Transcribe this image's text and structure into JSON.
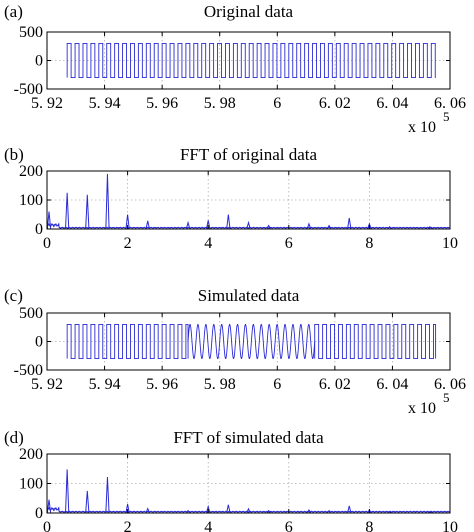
{
  "chart_data": [
    {
      "id": "a",
      "panel_label": "(a)",
      "type": "line",
      "title": "Original data",
      "xlim": [
        592000,
        606000
      ],
      "ylim": [
        -500,
        500
      ],
      "xticks": [
        592000,
        594000,
        596000,
        598000,
        600000,
        602000,
        604000,
        606000
      ],
      "xtick_labels": [
        "5. 92",
        "5. 94",
        "5. 96",
        "5. 98",
        "6",
        "6. 02",
        "6. 04",
        "6. 06"
      ],
      "yticks": [
        -500,
        0,
        500
      ],
      "ytick_labels": [
        "-500",
        "0",
        "500"
      ],
      "x_multiplier": "x 10",
      "x_multiplier_exp": "5",
      "grid": true,
      "signal": {
        "x_start": 592700,
        "x_end": 605500,
        "amplitude": 300,
        "segments": [
          {
            "x_start": 592700,
            "x_end": 605500,
            "style": "square",
            "period": 275
          }
        ]
      }
    },
    {
      "id": "b",
      "panel_label": "(b)",
      "type": "line",
      "title": "FFT of original data",
      "xlim": [
        0,
        10
      ],
      "ylim": [
        0,
        200
      ],
      "xticks": [
        0,
        2,
        4,
        6,
        8,
        10
      ],
      "xtick_labels": [
        "0",
        "2",
        "4",
        "6",
        "8",
        "10"
      ],
      "yticks": [
        0,
        100,
        200
      ],
      "ytick_labels": [
        "0",
        "100",
        "200"
      ],
      "grid": true,
      "peaks": [
        {
          "x": 0.05,
          "y": 60
        },
        {
          "x": 0.5,
          "y": 125
        },
        {
          "x": 1.0,
          "y": 118
        },
        {
          "x": 1.5,
          "y": 190
        },
        {
          "x": 2.0,
          "y": 50
        },
        {
          "x": 2.5,
          "y": 28
        },
        {
          "x": 3.5,
          "y": 22
        },
        {
          "x": 4.0,
          "y": 30
        },
        {
          "x": 4.5,
          "y": 50
        },
        {
          "x": 5.0,
          "y": 22
        },
        {
          "x": 5.5,
          "y": 12
        },
        {
          "x": 6.5,
          "y": 18
        },
        {
          "x": 7.0,
          "y": 12
        },
        {
          "x": 7.5,
          "y": 38
        },
        {
          "x": 8.0,
          "y": 18
        },
        {
          "x": 8.5,
          "y": 8
        },
        {
          "x": 9.5,
          "y": 8
        }
      ]
    },
    {
      "id": "c",
      "panel_label": "(c)",
      "type": "line",
      "title": "Simulated data",
      "xlim": [
        592000,
        606000
      ],
      "ylim": [
        -500,
        500
      ],
      "xticks": [
        592000,
        594000,
        596000,
        598000,
        600000,
        602000,
        604000,
        606000
      ],
      "xtick_labels": [
        "5. 92",
        "5. 94",
        "5. 96",
        "5. 98",
        "6",
        "6. 02",
        "6. 04",
        "6. 06"
      ],
      "yticks": [
        -500,
        0,
        500
      ],
      "ytick_labels": [
        "-500",
        "0",
        "500"
      ],
      "x_multiplier": "x 10",
      "x_multiplier_exp": "5",
      "grid": true,
      "signal": {
        "x_start": 592700,
        "x_end": 605500,
        "amplitude": 300,
        "segments": [
          {
            "x_start": 592700,
            "x_end": 596900,
            "style": "square",
            "period": 275
          },
          {
            "x_start": 596900,
            "x_end": 601300,
            "style": "sine",
            "period": 275
          },
          {
            "x_start": 601300,
            "x_end": 605500,
            "style": "square",
            "period": 275
          }
        ]
      }
    },
    {
      "id": "d",
      "panel_label": "(d)",
      "type": "line",
      "title": "FFT of simulated data",
      "xlim": [
        0,
        10
      ],
      "ylim": [
        0,
        200
      ],
      "xticks": [
        0,
        2,
        4,
        6,
        8,
        10
      ],
      "xtick_labels": [
        "0",
        "2",
        "4",
        "6",
        "8",
        "10"
      ],
      "yticks": [
        0,
        100,
        200
      ],
      "ytick_labels": [
        "0",
        "100",
        "200"
      ],
      "grid": true,
      "peaks": [
        {
          "x": 0.05,
          "y": 45
        },
        {
          "x": 0.5,
          "y": 148
        },
        {
          "x": 1.0,
          "y": 75
        },
        {
          "x": 1.5,
          "y": 122
        },
        {
          "x": 2.0,
          "y": 30
        },
        {
          "x": 2.5,
          "y": 15
        },
        {
          "x": 3.5,
          "y": 8
        },
        {
          "x": 4.0,
          "y": 22
        },
        {
          "x": 4.5,
          "y": 28
        },
        {
          "x": 5.0,
          "y": 14
        },
        {
          "x": 5.5,
          "y": 8
        },
        {
          "x": 6.5,
          "y": 10
        },
        {
          "x": 7.0,
          "y": 8
        },
        {
          "x": 7.5,
          "y": 24
        },
        {
          "x": 8.0,
          "y": 10
        },
        {
          "x": 8.5,
          "y": 5
        },
        {
          "x": 9.5,
          "y": 4
        }
      ]
    }
  ]
}
